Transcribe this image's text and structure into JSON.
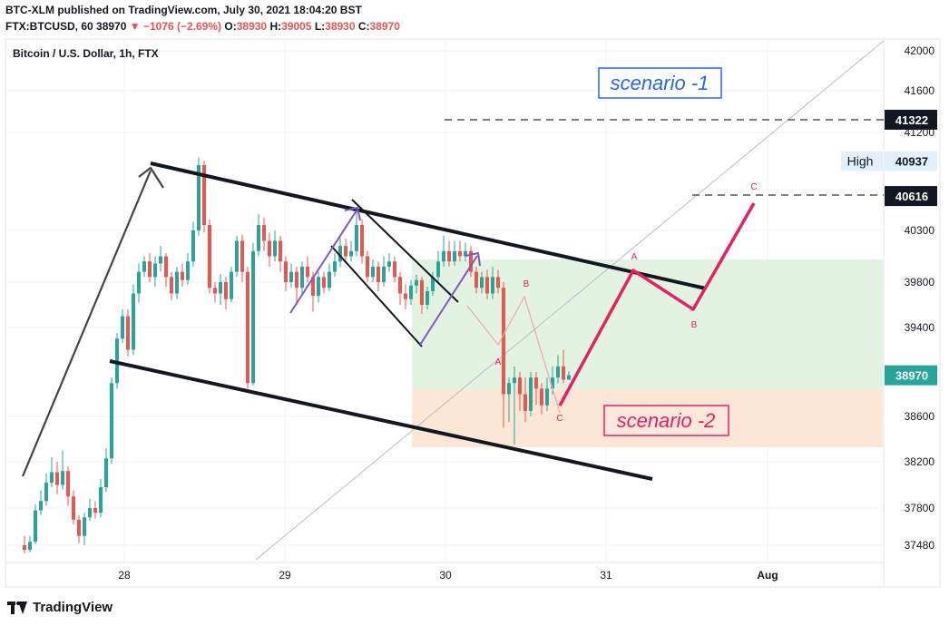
{
  "header": {
    "line1": "BTC-XLM published on TradingView.com, July 30, 2021 18:04:20 BST",
    "symbol": "FTX:BTCUSD, 60",
    "last": "38970",
    "change": "▼ −1076 (−2.69%)",
    "o_label": "O:",
    "o": "38930",
    "h_label": "H:",
    "h": "39005",
    "l_label": "L:",
    "l": "38930",
    "c_label": "C:",
    "c": "38970"
  },
  "pane_title": "Bitcoin / U.S. Dollar, 1h, FTX",
  "footer": {
    "brand": "TradingView"
  },
  "colors": {
    "up": "#26a69a",
    "down": "#ef5350",
    "scenario1": "#2962ff",
    "scenario2": "#e91e63",
    "zone_green": "#e2f2e0",
    "zone_orange": "#fce6d4"
  },
  "chart_data": {
    "type": "candlestick",
    "y_ticks": [
      42000,
      41600,
      41200,
      40300,
      39800,
      39400,
      38600,
      38200,
      37800,
      37480
    ],
    "x_ticks": [
      "28",
      "29",
      "30",
      "31",
      "Aug"
    ],
    "price_labels": [
      {
        "label": "",
        "value": "41322",
        "price": 41322
      },
      {
        "label": "High",
        "value": "40937",
        "price": 40937
      },
      {
        "label": "",
        "value": "40616",
        "price": 40616
      },
      {
        "label": "",
        "value": "38970",
        "price": 38970
      }
    ],
    "annotations": {
      "scenario1": "scenario -1",
      "scenario2": "scenario -2",
      "wave_small": [
        "A",
        "B",
        "C"
      ],
      "wave_big": [
        "A",
        "B",
        "C"
      ]
    },
    "candles": [
      [
        37480,
        37440,
        37560,
        37410
      ],
      [
        37440,
        37510,
        37560,
        37420
      ],
      [
        37510,
        37780,
        37830,
        37490
      ],
      [
        37780,
        37860,
        37950,
        37740
      ],
      [
        37860,
        38020,
        38100,
        37820
      ],
      [
        38020,
        38110,
        38240,
        37980
      ],
      [
        38110,
        38000,
        38200,
        37920
      ],
      [
        38000,
        38120,
        38300,
        37960
      ],
      [
        38120,
        37900,
        38160,
        37820
      ],
      [
        37900,
        37700,
        37950,
        37660
      ],
      [
        37700,
        37560,
        37740,
        37500
      ],
      [
        37560,
        37720,
        37760,
        37480
      ],
      [
        37720,
        37800,
        37880,
        37690
      ],
      [
        37800,
        37760,
        37860,
        37710
      ],
      [
        37760,
        37980,
        38050,
        37720
      ],
      [
        37980,
        38230,
        38320,
        37940
      ],
      [
        38230,
        38900,
        38950,
        38180
      ],
      [
        38900,
        39300,
        39350,
        38850
      ],
      [
        39300,
        39500,
        39560,
        39260
      ],
      [
        39500,
        39200,
        39560,
        39140
      ],
      [
        39200,
        39700,
        39780,
        39150
      ],
      [
        39700,
        39900,
        39980,
        39620
      ],
      [
        39900,
        40000,
        40050,
        39850
      ],
      [
        40000,
        39850,
        40080,
        39800
      ],
      [
        39850,
        39980,
        40050,
        39760
      ],
      [
        39980,
        40050,
        40150,
        39900
      ],
      [
        40050,
        39850,
        40080,
        39760
      ],
      [
        39850,
        39700,
        39900,
        39640
      ],
      [
        39700,
        39900,
        39950,
        39650
      ],
      [
        39900,
        39820,
        39980,
        39760
      ],
      [
        39820,
        40000,
        40080,
        39780
      ],
      [
        40000,
        40300,
        40380,
        39950
      ],
      [
        40300,
        40900,
        40970,
        40250
      ],
      [
        40900,
        40350,
        40937,
        40280
      ],
      [
        40350,
        39750,
        40400,
        39700
      ],
      [
        39750,
        39700,
        39800,
        39620
      ],
      [
        39700,
        39800,
        39880,
        39600
      ],
      [
        39800,
        39650,
        39850,
        39560
      ],
      [
        39650,
        39900,
        39950,
        39620
      ],
      [
        39900,
        40200,
        40250,
        39850
      ],
      [
        40200,
        39900,
        40260,
        39800
      ],
      [
        39900,
        38900,
        39950,
        38850
      ],
      [
        38900,
        40100,
        40180,
        38880
      ],
      [
        40100,
        40350,
        40450,
        40050
      ],
      [
        40350,
        40200,
        40420,
        40100
      ],
      [
        40200,
        40050,
        40280,
        39950
      ],
      [
        40050,
        40200,
        40300,
        40000
      ],
      [
        40200,
        40000,
        40250,
        39900
      ],
      [
        40000,
        39800,
        40050,
        39720
      ],
      [
        39800,
        39900,
        39980,
        39750
      ],
      [
        39900,
        39750,
        39950,
        39600
      ],
      [
        39750,
        39950,
        40000,
        39700
      ],
      [
        39950,
        39850,
        40050,
        39800
      ],
      [
        39850,
        39680,
        39900,
        39540
      ],
      [
        39680,
        39850,
        39900,
        39620
      ],
      [
        39850,
        39750,
        39900,
        39700
      ],
      [
        39750,
        39900,
        39980,
        39720
      ],
      [
        39900,
        40000,
        40080,
        39850
      ],
      [
        40000,
        40150,
        40230,
        39950
      ],
      [
        40150,
        40050,
        40220,
        39980
      ],
      [
        40050,
        40100,
        40200,
        40000
      ],
      [
        40100,
        40350,
        40500,
        40050
      ],
      [
        40350,
        40050,
        40400,
        39980
      ],
      [
        40050,
        39850,
        40100,
        39800
      ],
      [
        39850,
        39950,
        40020,
        39800
      ],
      [
        39950,
        39800,
        40000,
        39720
      ],
      [
        39800,
        39950,
        40050,
        39760
      ],
      [
        39950,
        40000,
        40080,
        39900
      ],
      [
        40000,
        39850,
        40050,
        39800
      ],
      [
        39850,
        39700,
        39900,
        39600
      ],
      [
        39700,
        39650,
        39780,
        39560
      ],
      [
        39650,
        39770,
        39820,
        39600
      ],
      [
        39770,
        39820,
        39870,
        39700
      ],
      [
        39820,
        39600,
        39850,
        39520
      ],
      [
        39600,
        39720,
        39760,
        39560
      ],
      [
        39720,
        39850,
        39900,
        39680
      ],
      [
        39850,
        40000,
        40100,
        39800
      ],
      [
        40000,
        40100,
        40250,
        39950
      ],
      [
        40100,
        40000,
        40200,
        39950
      ],
      [
        40000,
        40100,
        40200,
        39960
      ],
      [
        40100,
        40050,
        40200,
        40000
      ],
      [
        40050,
        40100,
        40180,
        40000
      ],
      [
        40100,
        39900,
        40150,
        39850
      ],
      [
        39900,
        39750,
        39950,
        39700
      ],
      [
        39750,
        39850,
        39900,
        39700
      ],
      [
        39850,
        39700,
        39920,
        39650
      ],
      [
        39700,
        39850,
        39950,
        39650
      ],
      [
        39850,
        39750,
        39920,
        39700
      ],
      [
        39750,
        38800,
        39800,
        38500
      ],
      [
        38800,
        38900,
        38950,
        38550
      ],
      [
        38900,
        38950,
        39050,
        38350
      ],
      [
        38950,
        38800,
        39000,
        38650
      ],
      [
        38800,
        38650,
        38950,
        38550
      ],
      [
        38650,
        38950,
        39000,
        38600
      ],
      [
        38950,
        38850,
        39000,
        38700
      ],
      [
        38850,
        38700,
        38900,
        38620
      ],
      [
        38700,
        38850,
        38950,
        38650
      ],
      [
        38850,
        38950,
        39050,
        38800
      ],
      [
        38950,
        39050,
        39150,
        38900
      ],
      [
        39050,
        38930,
        39200,
        38900
      ],
      [
        38930,
        38970,
        39005,
        38930
      ]
    ]
  }
}
